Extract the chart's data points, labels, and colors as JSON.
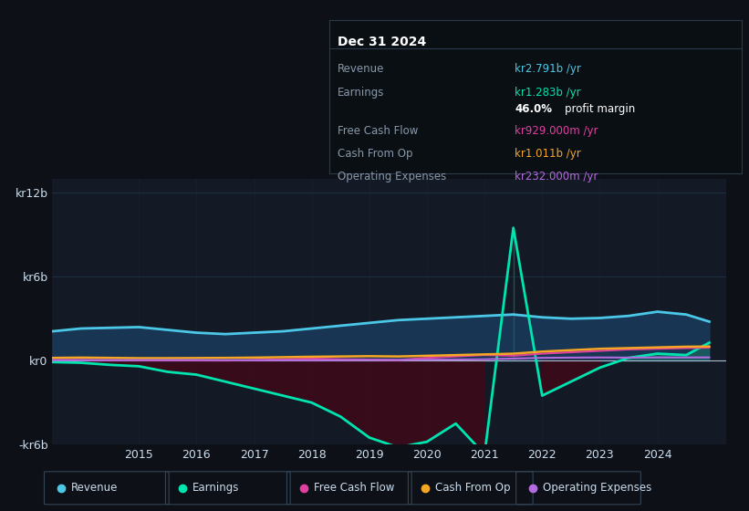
{
  "bg_color": "#0d1117",
  "plot_bg_color": "#131a25",
  "grid_color": "#1e2d3d",
  "title_box": {
    "date": "Dec 31 2024",
    "rows": [
      {
        "label": "Revenue",
        "value": "kr2.791b /yr",
        "value_color": "#4bc8e8"
      },
      {
        "label": "Earnings",
        "value": "kr1.283b /yr",
        "value_color": "#00e5b0"
      },
      {
        "label": "",
        "value": "46.0% profit margin",
        "value_color": "#ffffff",
        "bold_part": "46.0%"
      },
      {
        "label": "Free Cash Flow",
        "value": "kr929.000m /yr",
        "value_color": "#e040a0"
      },
      {
        "label": "Cash From Op",
        "value": "kr1.011b /yr",
        "value_color": "#f5a623"
      },
      {
        "label": "Operating Expenses",
        "value": "kr232.000m /yr",
        "value_color": "#b36be0"
      }
    ],
    "bg": "#0a0f14",
    "border": "#2a3a4a",
    "label_color": "#8899aa",
    "date_color": "#ffffff"
  },
  "ylim": [
    -6000000000,
    13000000000
  ],
  "yticks": [
    -6000000000,
    0,
    6000000000,
    12000000000
  ],
  "ytick_labels": [
    "-kr6b",
    "kr0",
    "kr6b",
    "kr12b"
  ],
  "xlabel_years": [
    2015,
    2016,
    2017,
    2018,
    2019,
    2020,
    2021,
    2022,
    2023,
    2024
  ],
  "legend": [
    {
      "label": "Revenue",
      "color": "#4bc8e8"
    },
    {
      "label": "Earnings",
      "color": "#00e5b0"
    },
    {
      "label": "Free Cash Flow",
      "color": "#e040a0"
    },
    {
      "label": "Cash From Op",
      "color": "#f5a623"
    },
    {
      "label": "Operating Expenses",
      "color": "#b36be0"
    }
  ],
  "series": {
    "x": [
      2013.5,
      2014.0,
      2014.5,
      2015.0,
      2015.5,
      2016.0,
      2016.5,
      2017.0,
      2017.5,
      2018.0,
      2018.5,
      2019.0,
      2019.5,
      2020.0,
      2020.5,
      2021.0,
      2021.5,
      2022.0,
      2022.5,
      2023.0,
      2023.5,
      2024.0,
      2024.5,
      2024.9
    ],
    "revenue": [
      2100000000,
      2300000000,
      2350000000,
      2400000000,
      2200000000,
      2000000000,
      1900000000,
      2000000000,
      2100000000,
      2300000000,
      2500000000,
      2700000000,
      2900000000,
      3000000000,
      3100000000,
      3200000000,
      3300000000,
      3100000000,
      3000000000,
      3050000000,
      3200000000,
      3500000000,
      3300000000,
      2791000000
    ],
    "earnings": [
      -100000000,
      -150000000,
      -300000000,
      -400000000,
      -800000000,
      -1000000000,
      -1500000000,
      -2000000000,
      -2500000000,
      -3000000000,
      -4000000000,
      -5500000000,
      -6200000000,
      -5800000000,
      -4500000000,
      -6700000000,
      9500000000,
      -2500000000,
      -1500000000,
      -500000000,
      200000000,
      500000000,
      400000000,
      1283000000
    ],
    "free_cash_flow": [
      50000000,
      50000000,
      40000000,
      30000000,
      30000000,
      20000000,
      10000000,
      50000000,
      100000000,
      150000000,
      100000000,
      80000000,
      50000000,
      200000000,
      300000000,
      400000000,
      350000000,
      500000000,
      600000000,
      700000000,
      800000000,
      850000000,
      900000000,
      929000000
    ],
    "cash_from_op": [
      200000000,
      220000000,
      200000000,
      180000000,
      180000000,
      190000000,
      200000000,
      220000000,
      250000000,
      280000000,
      300000000,
      320000000,
      300000000,
      350000000,
      400000000,
      450000000,
      500000000,
      650000000,
      750000000,
      850000000,
      900000000,
      950000000,
      1000000000,
      1011000000
    ],
    "op_expenses": [
      30000000,
      30000000,
      30000000,
      40000000,
      40000000,
      40000000,
      30000000,
      30000000,
      30000000,
      30000000,
      40000000,
      50000000,
      50000000,
      70000000,
      80000000,
      100000000,
      150000000,
      200000000,
      220000000,
      230000000,
      220000000,
      230000000,
      230000000,
      232000000
    ]
  }
}
